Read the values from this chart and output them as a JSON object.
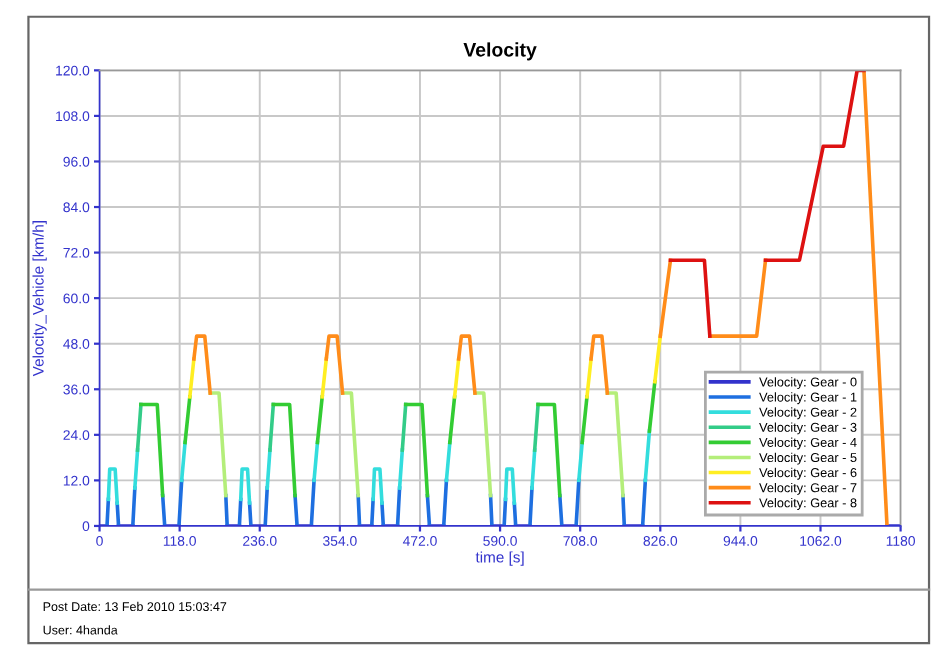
{
  "chart_data": {
    "type": "line",
    "title": "Velocity",
    "xlabel": "time [s]",
    "ylabel": "Velocity_Vehicle [km/h]",
    "xlim": [
      0,
      1180
    ],
    "ylim": [
      0,
      120
    ],
    "xticks": [
      0,
      {
        "value": 118,
        "label": "118.0"
      },
      {
        "value": 236,
        "label": "236.0"
      },
      {
        "value": 354,
        "label": "354.0"
      },
      {
        "value": 472,
        "label": "472.0"
      },
      {
        "value": 590,
        "label": "590.0"
      },
      {
        "value": 708,
        "label": "708.0"
      },
      {
        "value": 826,
        "label": "826.0"
      },
      {
        "value": 944,
        "label": "944.0"
      },
      {
        "value": 1062,
        "label": "1062.0"
      },
      {
        "value": 1180,
        "label": "1180"
      }
    ],
    "yticks": [
      0,
      {
        "value": 12,
        "label": "12.0"
      },
      {
        "value": 24,
        "label": "24.0"
      },
      {
        "value": 36,
        "label": "36.0"
      },
      {
        "value": 48,
        "label": "48.0"
      },
      {
        "value": 60,
        "label": "60.0"
      },
      {
        "value": 72,
        "label": "72.0"
      },
      {
        "value": 84,
        "label": "84.0"
      },
      {
        "value": 96,
        "label": "96.0"
      },
      {
        "value": 108,
        "label": "108.0"
      },
      {
        "value": 120,
        "label": "120.0"
      }
    ],
    "grid": true,
    "legend": "bottom right",
    "line_style": "solid",
    "annotations": [
      "Post Date: 13 Feb 2010 15:03:47",
      "User: 4handa"
    ],
    "series": [
      {
        "name": "Velocity: Gear - 0",
        "color": "#3333cc",
        "x": [
          0,
          11,
          null,
          28,
          49,
          null,
          96,
          117,
          null,
          188,
          206,
          null,
          223,
          244,
          null,
          291,
          312,
          null,
          383,
          401,
          null,
          418,
          439,
          null,
          486,
          507,
          null,
          578,
          596,
          null,
          613,
          634,
          null,
          681,
          702,
          null,
          773,
          800,
          null,
          1160,
          1180
        ],
        "values": [
          0,
          0,
          null,
          0,
          0,
          null,
          0,
          0,
          null,
          0,
          0,
          null,
          0,
          0,
          null,
          0,
          0,
          null,
          0,
          0,
          null,
          0,
          0,
          null,
          0,
          0,
          null,
          0,
          0,
          null,
          0,
          0,
          null,
          0,
          0,
          null,
          0,
          0,
          null,
          0,
          0
        ]
      },
      {
        "name": "Velocity: Gear - 1",
        "color": "#1e6fe0",
        "x": [
          11,
          13,
          null,
          26,
          28,
          null,
          49,
          52,
          null,
          93,
          96,
          null,
          117,
          121,
          null,
          186,
          188,
          null,
          206,
          208,
          null,
          221,
          223,
          null,
          244,
          247,
          null,
          288,
          291,
          null,
          312,
          316,
          null,
          381,
          383,
          null,
          401,
          403,
          null,
          416,
          418,
          null,
          439,
          442,
          null,
          483,
          486,
          null,
          507,
          511,
          null,
          576,
          578,
          null,
          596,
          598,
          null,
          611,
          613,
          null,
          634,
          637,
          null,
          678,
          681,
          null,
          702,
          706,
          null,
          771,
          773,
          null,
          800,
          804
        ],
        "values": [
          0,
          7,
          null,
          6,
          0,
          null,
          0,
          10,
          null,
          8,
          0,
          null,
          0,
          12,
          null,
          8,
          0,
          null,
          0,
          7,
          null,
          6,
          0,
          null,
          0,
          10,
          null,
          8,
          0,
          null,
          0,
          12,
          null,
          8,
          0,
          null,
          0,
          7,
          null,
          6,
          0,
          null,
          0,
          10,
          null,
          8,
          0,
          null,
          0,
          12,
          null,
          8,
          0,
          null,
          0,
          7,
          null,
          6,
          0,
          null,
          0,
          10,
          null,
          8,
          0,
          null,
          0,
          12,
          null,
          8,
          0,
          null,
          0,
          12
        ]
      },
      {
        "name": "Velocity: Gear - 2",
        "color": "#33dddd",
        "x": [
          13,
          15,
          23,
          26,
          null,
          52,
          56,
          null,
          121,
          126,
          null,
          208,
          210,
          218,
          221,
          null,
          247,
          251,
          null,
          316,
          321,
          null,
          403,
          405,
          413,
          416,
          null,
          442,
          446,
          null,
          511,
          516,
          null,
          598,
          600,
          608,
          611,
          null,
          637,
          641,
          null,
          706,
          711,
          null,
          804,
          810
        ],
        "values": [
          7,
          15,
          15,
          6,
          null,
          10,
          20,
          null,
          12,
          22,
          null,
          7,
          15,
          15,
          6,
          null,
          10,
          20,
          null,
          12,
          22,
          null,
          7,
          15,
          15,
          6,
          null,
          10,
          20,
          null,
          12,
          22,
          null,
          7,
          15,
          15,
          6,
          null,
          10,
          20,
          null,
          12,
          22,
          null,
          12,
          25
        ]
      },
      {
        "name": "Velocity: Gear - 3",
        "color": "#33cc88",
        "x": [
          56,
          61,
          null,
          251,
          256,
          null,
          446,
          451,
          null,
          641,
          646
        ],
        "values": [
          20,
          32,
          null,
          20,
          32,
          null,
          20,
          32,
          null,
          20,
          32
        ]
      },
      {
        "name": "Velocity: Gear - 4",
        "color": "#33cc33",
        "x": [
          61,
          85,
          93,
          null,
          126,
          133,
          null,
          256,
          280,
          288,
          null,
          321,
          328,
          null,
          451,
          475,
          483,
          null,
          516,
          523,
          null,
          646,
          670,
          678,
          null,
          711,
          718,
          null,
          810,
          818
        ],
        "values": [
          32,
          32,
          8,
          null,
          22,
          34,
          null,
          32,
          32,
          8,
          null,
          22,
          34,
          null,
          32,
          32,
          8,
          null,
          22,
          34,
          null,
          32,
          32,
          8,
          null,
          22,
          34,
          null,
          25,
          38
        ]
      },
      {
        "name": "Velocity: Gear - 5",
        "color": "#b4ee7a",
        "x": [
          163,
          176,
          186,
          null,
          358,
          371,
          381,
          null,
          553,
          566,
          576,
          null,
          748,
          761,
          771
        ],
        "values": [
          35,
          35,
          8,
          null,
          35,
          35,
          8,
          null,
          35,
          35,
          8,
          null,
          35,
          35,
          8
        ]
      },
      {
        "name": "Velocity: Gear - 6",
        "color": "#ffee22",
        "x": [
          133,
          139,
          null,
          328,
          334,
          null,
          523,
          529,
          null,
          718,
          724,
          null,
          818,
          826
        ],
        "values": [
          34,
          44,
          null,
          34,
          44,
          null,
          34,
          44,
          null,
          34,
          44,
          null,
          38,
          50
        ]
      },
      {
        "name": "Velocity: Gear - 7",
        "color": "#ff8c1a",
        "x": [
          139,
          143,
          155,
          163,
          null,
          334,
          338,
          350,
          358,
          null,
          529,
          533,
          545,
          553,
          null,
          724,
          728,
          740,
          748,
          null,
          826,
          835,
          841,
          null,
          899,
          968,
          981,
          null,
          1126,
          1160
        ],
        "values": [
          44,
          50,
          50,
          35,
          null,
          44,
          50,
          50,
          35,
          null,
          44,
          50,
          50,
          35,
          null,
          44,
          50,
          50,
          35,
          null,
          50,
          62,
          70,
          null,
          50,
          50,
          70,
          null,
          120,
          0
        ]
      },
      {
        "name": "Velocity: Gear - 8",
        "color": "#dd1111",
        "x": [
          841,
          891,
          899,
          null,
          981,
          1031,
          1066,
          1096,
          1116,
          1126
        ],
        "values": [
          70,
          70,
          50,
          null,
          70,
          70,
          100,
          100,
          120,
          120
        ]
      }
    ]
  }
}
